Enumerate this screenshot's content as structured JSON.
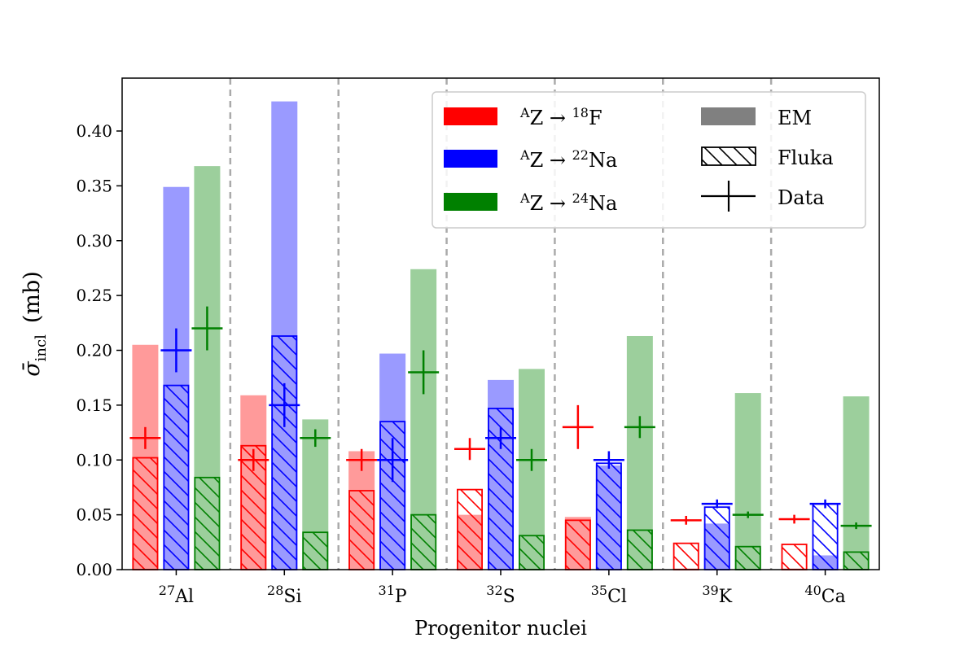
{
  "chart_data": {
    "type": "bar",
    "title": "",
    "xlabel": "Progenitor nuclei",
    "ylabel": "σ̄_incl (mb)",
    "ylabel_symbol": "σ̄",
    "ylabel_sub": "incl",
    "ylabel_unit": "(mb)",
    "ylim": [
      0,
      0.45
    ],
    "yticks": [
      "0.00",
      "0.05",
      "0.10",
      "0.15",
      "0.20",
      "0.25",
      "0.30",
      "0.35",
      "0.40"
    ],
    "categories": [
      {
        "mass": "27",
        "symbol": "Al"
      },
      {
        "mass": "28",
        "symbol": "Si"
      },
      {
        "mass": "31",
        "symbol": "P"
      },
      {
        "mass": "32",
        "symbol": "S"
      },
      {
        "mass": "35",
        "symbol": "Cl"
      },
      {
        "mass": "39",
        "symbol": "K"
      },
      {
        "mass": "40",
        "symbol": "Ca"
      }
    ],
    "series": [
      {
        "name": "AZ → 18F",
        "product_mass": "18",
        "product": "F",
        "color": "#ff0000",
        "fill": "#ff9a9a",
        "em": [
          0.205,
          0.159,
          0.108,
          0.05,
          0.048,
          0.001,
          0.001
        ],
        "fluka": [
          0.102,
          0.113,
          0.072,
          0.073,
          0.045,
          0.024,
          0.023
        ],
        "data": [
          0.12,
          0.1,
          0.1,
          0.11,
          0.13,
          0.045,
          0.046
        ],
        "err": [
          0.01,
          0.01,
          0.01,
          0.01,
          0.02,
          0.004,
          0.004
        ]
      },
      {
        "name": "AZ → 22Na",
        "product_mass": "22",
        "product": "Na",
        "color": "#0000ff",
        "fill": "#9a9aff",
        "em": [
          0.349,
          0.427,
          0.197,
          0.173,
          0.095,
          0.042,
          0.013
        ],
        "fluka": [
          0.168,
          0.213,
          0.135,
          0.147,
          0.097,
          0.057,
          0.06
        ],
        "data": [
          0.2,
          0.15,
          0.1,
          0.12,
          0.1,
          0.06,
          0.06
        ],
        "err": [
          0.02,
          0.02,
          0.02,
          0.01,
          0.008,
          0.004,
          0.004
        ]
      },
      {
        "name": "AZ → 24Na",
        "product_mass": "24",
        "product": "Na",
        "color": "#008000",
        "fill": "#9ccf9c",
        "em": [
          0.368,
          0.137,
          0.274,
          0.183,
          0.213,
          0.161,
          0.158
        ],
        "fluka": [
          0.084,
          0.034,
          0.05,
          0.031,
          0.036,
          0.021,
          0.016
        ],
        "data": [
          0.22,
          0.12,
          0.18,
          0.1,
          0.13,
          0.05,
          0.04
        ],
        "err": [
          0.02,
          0.008,
          0.02,
          0.01,
          0.01,
          0.003,
          0.003
        ]
      }
    ],
    "legend": {
      "placement": "top-right",
      "series_prefix": "A",
      "series_base": "Z",
      "arrow": "→",
      "styles": [
        "EM",
        "Fluka",
        "Data"
      ]
    }
  }
}
